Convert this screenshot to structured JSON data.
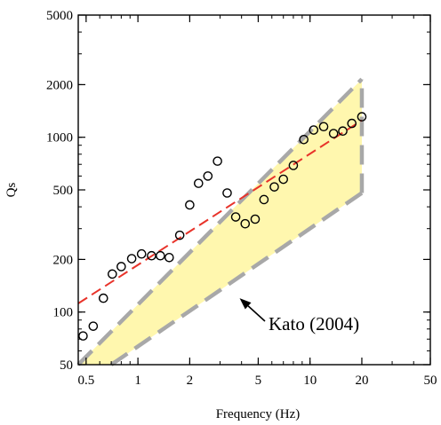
{
  "chart_data": {
    "type": "scatter",
    "title": "",
    "xlabel": "Frequency (Hz)",
    "ylabel": "Qs",
    "x_scale": "log",
    "y_scale": "log",
    "xlim": [
      0.45,
      50
    ],
    "ylim": [
      50,
      5000
    ],
    "x_ticks": [
      {
        "value": 0.5,
        "label": "0.5"
      },
      {
        "value": 1,
        "label": "1"
      },
      {
        "value": 2,
        "label": "2"
      },
      {
        "value": 5,
        "label": "5"
      },
      {
        "value": 10,
        "label": "10"
      },
      {
        "value": 20,
        "label": "20"
      },
      {
        "value": 50,
        "label": "50"
      }
    ],
    "y_ticks": [
      {
        "value": 50,
        "label": "50"
      },
      {
        "value": 100,
        "label": "100"
      },
      {
        "value": 200,
        "label": "200"
      },
      {
        "value": 500,
        "label": "500"
      },
      {
        "value": 1000,
        "label": "1000"
      },
      {
        "value": 2000,
        "label": "2000"
      },
      {
        "value": 5000,
        "label": "5000"
      }
    ],
    "grid": false,
    "series": [
      {
        "kind": "scatter",
        "color": "#000000",
        "points": [
          {
            "x": 0.48,
            "y": 73
          },
          {
            "x": 0.55,
            "y": 83
          },
          {
            "x": 0.63,
            "y": 120
          },
          {
            "x": 0.71,
            "y": 165
          },
          {
            "x": 0.8,
            "y": 182
          },
          {
            "x": 0.92,
            "y": 202
          },
          {
            "x": 1.05,
            "y": 215
          },
          {
            "x": 1.2,
            "y": 210
          },
          {
            "x": 1.35,
            "y": 210
          },
          {
            "x": 1.52,
            "y": 205
          },
          {
            "x": 1.75,
            "y": 275
          },
          {
            "x": 2.0,
            "y": 410
          },
          {
            "x": 2.25,
            "y": 545
          },
          {
            "x": 2.55,
            "y": 600
          },
          {
            "x": 2.9,
            "y": 730
          },
          {
            "x": 3.3,
            "y": 480
          },
          {
            "x": 3.7,
            "y": 350
          },
          {
            "x": 4.2,
            "y": 320
          },
          {
            "x": 4.8,
            "y": 340
          },
          {
            "x": 5.4,
            "y": 440
          },
          {
            "x": 6.2,
            "y": 520
          },
          {
            "x": 7.0,
            "y": 575
          },
          {
            "x": 8.0,
            "y": 690
          },
          {
            "x": 9.2,
            "y": 970
          },
          {
            "x": 10.5,
            "y": 1100
          },
          {
            "x": 12.0,
            "y": 1150
          },
          {
            "x": 13.7,
            "y": 1050
          },
          {
            "x": 15.5,
            "y": 1085
          },
          {
            "x": 17.5,
            "y": 1200
          },
          {
            "x": 20.0,
            "y": 1310
          }
        ]
      },
      {
        "kind": "fit-line",
        "style": "dashed",
        "color": "#e8332a",
        "points": [
          {
            "x": 0.45,
            "y": 112
          },
          {
            "x": 20,
            "y": 1250
          }
        ]
      }
    ],
    "band": {
      "fill": "#fff7ae",
      "stroke": "#a8a8a8",
      "style": "dashed",
      "upper": [
        {
          "x": 0.45,
          "y": 50
        },
        {
          "x": 20,
          "y": 2150
        }
      ],
      "lower": [
        {
          "x": 0.45,
          "y": 50
        },
        {
          "x": 0.7,
          "y": 50
        },
        {
          "x": 20,
          "y": 480
        }
      ]
    },
    "annotations": [
      {
        "text": "Kato (2004)",
        "arrow_to": {
          "x": 3.9,
          "y": 120
        }
      }
    ]
  }
}
